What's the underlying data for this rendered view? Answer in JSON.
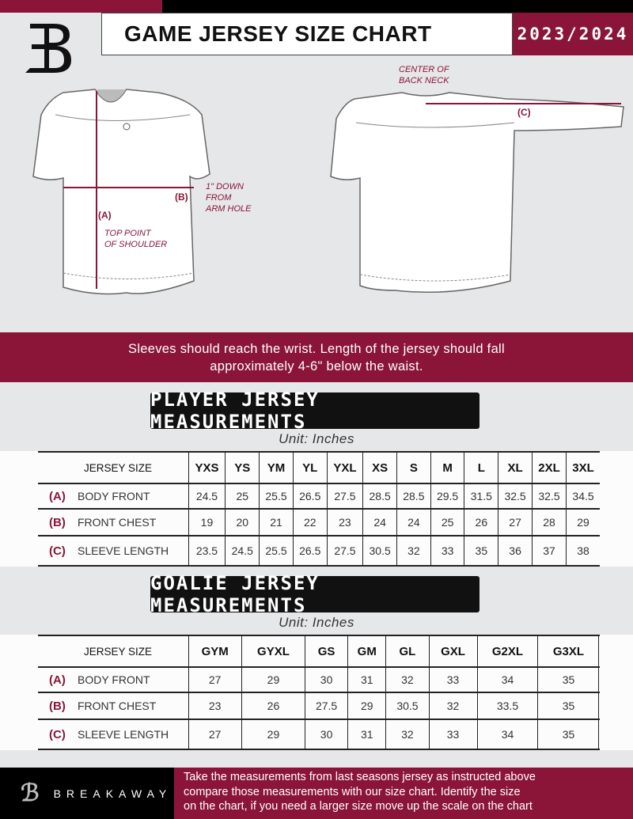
{
  "header": {
    "title": "GAME JERSEY SIZE CHART",
    "season": "2023/2024",
    "logo_letter": "B"
  },
  "diagram": {
    "notes": {
      "center_back_neck": [
        "CENTER OF",
        "BACK NECK"
      ],
      "down_from_arm": [
        "1\" DOWN",
        "FROM",
        "ARM HOLE"
      ],
      "top_shoulder": [
        "TOP POINT",
        "OF SHOULDER"
      ]
    },
    "labels": {
      "a": "(A)",
      "b": "(B)",
      "c": "(C)"
    }
  },
  "instructions": [
    "Sleeves should reach the wrist. Length of the jersey should fall",
    "approximately 4-6\" below the waist."
  ],
  "player": {
    "heading": "PLAYER JERSEY MEASUREMENTS",
    "unit": "Unit: Inches",
    "size_label": "JERSEY SIZE",
    "sizes": [
      "YXS",
      "YS",
      "YM",
      "YL",
      "YXL",
      "XS",
      "S",
      "M",
      "L",
      "XL",
      "2XL",
      "3XL"
    ],
    "rows": [
      {
        "letter": "(A)",
        "label": "BODY FRONT",
        "values": [
          "24.5",
          "25",
          "25.5",
          "26.5",
          "27.5",
          "28.5",
          "28.5",
          "29.5",
          "31.5",
          "32.5",
          "32.5",
          "34.5"
        ]
      },
      {
        "letter": "(B)",
        "label": "FRONT CHEST",
        "values": [
          "19",
          "20",
          "21",
          "22",
          "23",
          "24",
          "24",
          "25",
          "26",
          "27",
          "28",
          "29"
        ]
      },
      {
        "letter": "(C)",
        "label": "SLEEVE LENGTH",
        "values": [
          "23.5",
          "24.5",
          "25.5",
          "26.5",
          "27.5",
          "30.5",
          "32",
          "33",
          "35",
          "36",
          "37",
          "38"
        ]
      }
    ]
  },
  "goalie": {
    "heading": "GOALIE JERSEY MEASUREMENTS",
    "unit": "Unit: Inches",
    "size_label": "JERSEY SIZE",
    "sizes": [
      "GYM",
      "GYXL",
      "GS",
      "GM",
      "GL",
      "GXL",
      "G2XL",
      "G3XL",
      ""
    ],
    "rows": [
      {
        "letter": "(A)",
        "label": "BODY FRONT",
        "values": [
          "27",
          "29",
          "30",
          "31",
          "32",
          "33",
          "34",
          "35",
          ""
        ]
      },
      {
        "letter": "(B)",
        "label": "FRONT CHEST",
        "values": [
          "23",
          "26",
          "27.5",
          "29",
          "30.5",
          "32",
          "33.5",
          "35",
          ""
        ]
      },
      {
        "letter": "(C)",
        "label": "SLEEVE LENGTH",
        "values": [
          "27",
          "29",
          "30",
          "31",
          "32",
          "33",
          "34",
          "35",
          ""
        ]
      }
    ]
  },
  "footer": {
    "brand": "BREAKAWAY",
    "text": [
      "Take the measurements from last seasons jersey as instructed above",
      "compare those measurements  with our size chart. Identify the size",
      "on the chart, if you need a larger size move up the scale on the chart"
    ]
  },
  "colors": {
    "brand": "#8a1538",
    "dark": "#111111",
    "background": "#e6e7e8"
  }
}
